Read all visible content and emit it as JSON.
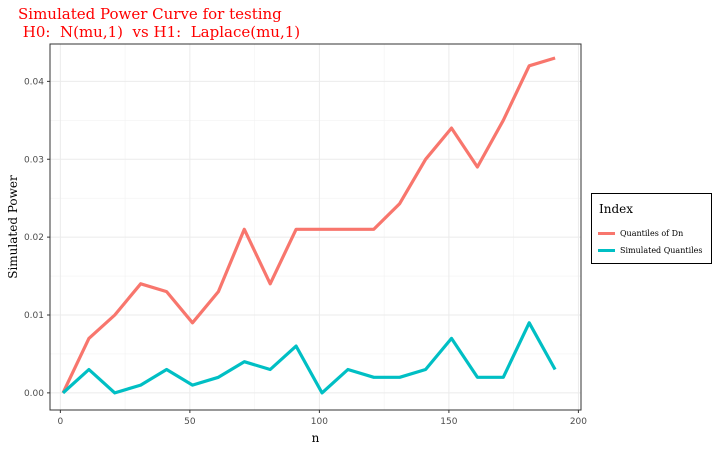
{
  "chart_data": {
    "type": "line",
    "title_lines": [
      "Simulated Power Curve for testing",
      " H0:  N(mu,1)  vs H1:  Laplace(mu,1)"
    ],
    "xlabel": "n",
    "ylabel": "Simulated Power",
    "xlim": [
      -4,
      201
    ],
    "ylim": [
      -0.0022,
      0.0448
    ],
    "x_ticks": [
      0,
      50,
      100,
      150,
      200
    ],
    "x_tick_labels": [
      "0",
      "50",
      "100",
      "150",
      "200"
    ],
    "y_ticks": [
      0,
      0.01,
      0.02,
      0.03,
      0.04
    ],
    "y_tick_labels": [
      "0.00",
      "0.01",
      "0.02",
      "0.03",
      "0.04"
    ],
    "grid": true,
    "legend_title": "Index",
    "legend_position": "right",
    "x": [
      1,
      11,
      21,
      31,
      41,
      51,
      61,
      71,
      81,
      91,
      101,
      111,
      121,
      131,
      141,
      151,
      161,
      171,
      181,
      191
    ],
    "series": [
      {
        "name": "Quantiles of Dn",
        "color": "#f8766d",
        "values": [
          0,
          0.007,
          0.01,
          0.014,
          0.013,
          0.009,
          0.013,
          0.021,
          0.014,
          0.021,
          0.021,
          0.021,
          0.021,
          0.0243,
          0.03,
          0.034,
          0.029,
          0.035,
          0.042,
          0.043
        ]
      },
      {
        "name": "Simulated Quantiles",
        "color": "#00bfc4",
        "values": [
          0,
          0.003,
          0,
          0.001,
          0.003,
          0.001,
          0.002,
          0.004,
          0.003,
          0.006,
          0,
          0.003,
          0.002,
          0.002,
          0.003,
          0.007,
          0.002,
          0.002,
          0.009,
          0.003
        ]
      }
    ]
  }
}
